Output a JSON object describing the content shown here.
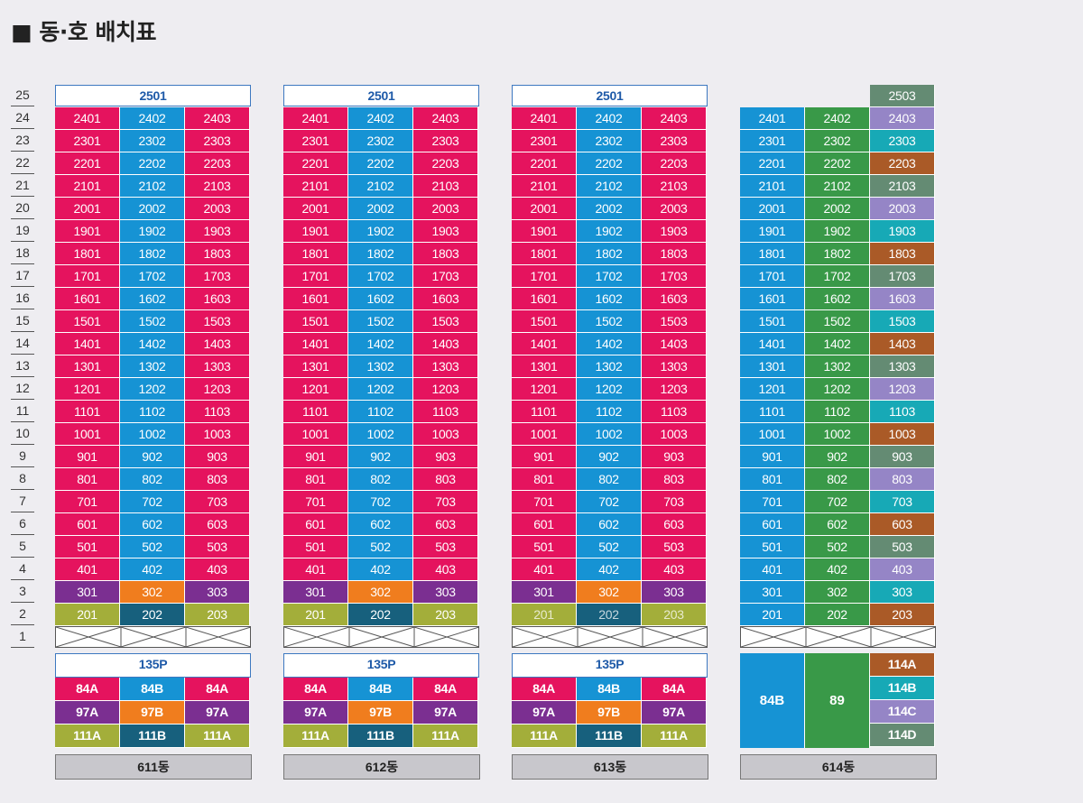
{
  "title": "■ 동·호 배치표",
  "colors": {
    "magenta": "#e5135e",
    "blue": "#1693d4",
    "purple": "#7b2f91",
    "orange": "#f07d1e",
    "olive": "#a3ae3a",
    "navy": "#17607d",
    "green": "#399948",
    "lavender": "#9585c6",
    "teal": "#17a9b6",
    "brown": "#aa5a27",
    "sage": "#648b73"
  },
  "floors": [
    "25",
    "24",
    "23",
    "22",
    "21",
    "20",
    "19",
    "18",
    "17",
    "16",
    "15",
    "14",
    "13",
    "12",
    "11",
    "10",
    "9",
    "8",
    "7",
    "6",
    "5",
    "4",
    "3",
    "2",
    "1"
  ],
  "buildings": [
    {
      "name": "611동",
      "header": "2501",
      "parking": "135P",
      "types": [
        [
          "84A",
          "84B",
          "84A"
        ],
        [
          "97A",
          "97B",
          "97A"
        ],
        [
          "111A",
          "111B",
          "111A"
        ]
      ]
    },
    {
      "name": "612동",
      "header": "2501",
      "parking": "135P",
      "types": [
        [
          "84A",
          "84B",
          "84A"
        ],
        [
          "97A",
          "97B",
          "97A"
        ],
        [
          "111A",
          "111B",
          "111A"
        ]
      ]
    },
    {
      "name": "613동",
      "header": "2501",
      "parking": "135P",
      "types": [
        [
          "84A",
          "84B",
          "84A"
        ],
        [
          "97A",
          "97B",
          "97A"
        ],
        [
          "111A",
          "111B",
          "111A"
        ]
      ]
    },
    {
      "name": "614동",
      "header": "2503",
      "big_types": [
        "84B",
        "89"
      ],
      "types": [
        "114A",
        "114B",
        "114C",
        "114D"
      ]
    }
  ]
}
